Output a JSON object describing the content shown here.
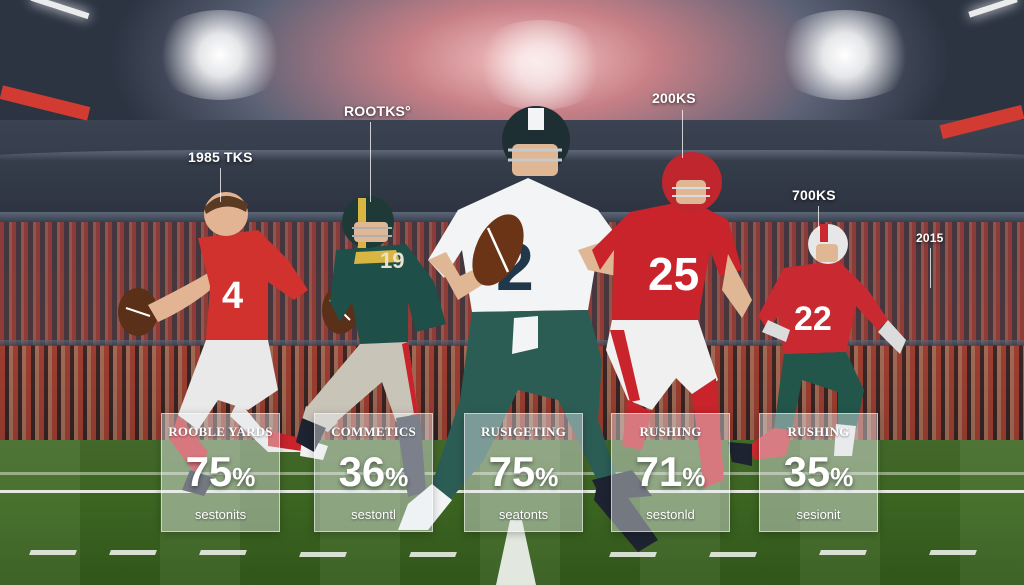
{
  "labels": {
    "label_1": "1985 TKS",
    "label_2": "ROOTKS°",
    "label_3": "200KS",
    "label_4": "700KS",
    "label_5": "2015"
  },
  "players": [
    {
      "number": "4",
      "jersey_color": "#d1322d",
      "pants_color": "#e9e9e9",
      "helmet": false
    },
    {
      "number": "19",
      "jersey_color": "#1f4f49",
      "pants_color": "#c9c4b8",
      "helmet": true,
      "helmet_color": "#1f3a36"
    },
    {
      "number": "2",
      "jersey_color": "#f2f4f5",
      "pants_color": "#2c5d55",
      "helmet": true,
      "helmet_color": "#1e2f34",
      "numeral_color": "#20384a"
    },
    {
      "number": "25",
      "jersey_color": "#c9232b",
      "pants_color": "#f0f0f0",
      "helmet": true,
      "helmet_color": "#c0262e"
    },
    {
      "number": "22",
      "jersey_color": "#c92a31",
      "pants_color": "#22564a",
      "helmet": true,
      "helmet_color": "#e7e7e7"
    }
  ],
  "cards": [
    {
      "title": "ROOBLE YARDS",
      "number": "75",
      "unit": "%",
      "sub": "sestonits"
    },
    {
      "title": "COMMETICS",
      "number": "36",
      "unit": "%",
      "sub": "sestontl"
    },
    {
      "title": "RUSIGETING",
      "number": "75",
      "unit": "%",
      "sub": "seatonts"
    },
    {
      "title": "RUSHING",
      "number": "71",
      "unit": "%",
      "sub": "sestonld"
    },
    {
      "title": "RUSHING",
      "number": "35",
      "unit": "%",
      "sub": "sesionit"
    }
  ]
}
